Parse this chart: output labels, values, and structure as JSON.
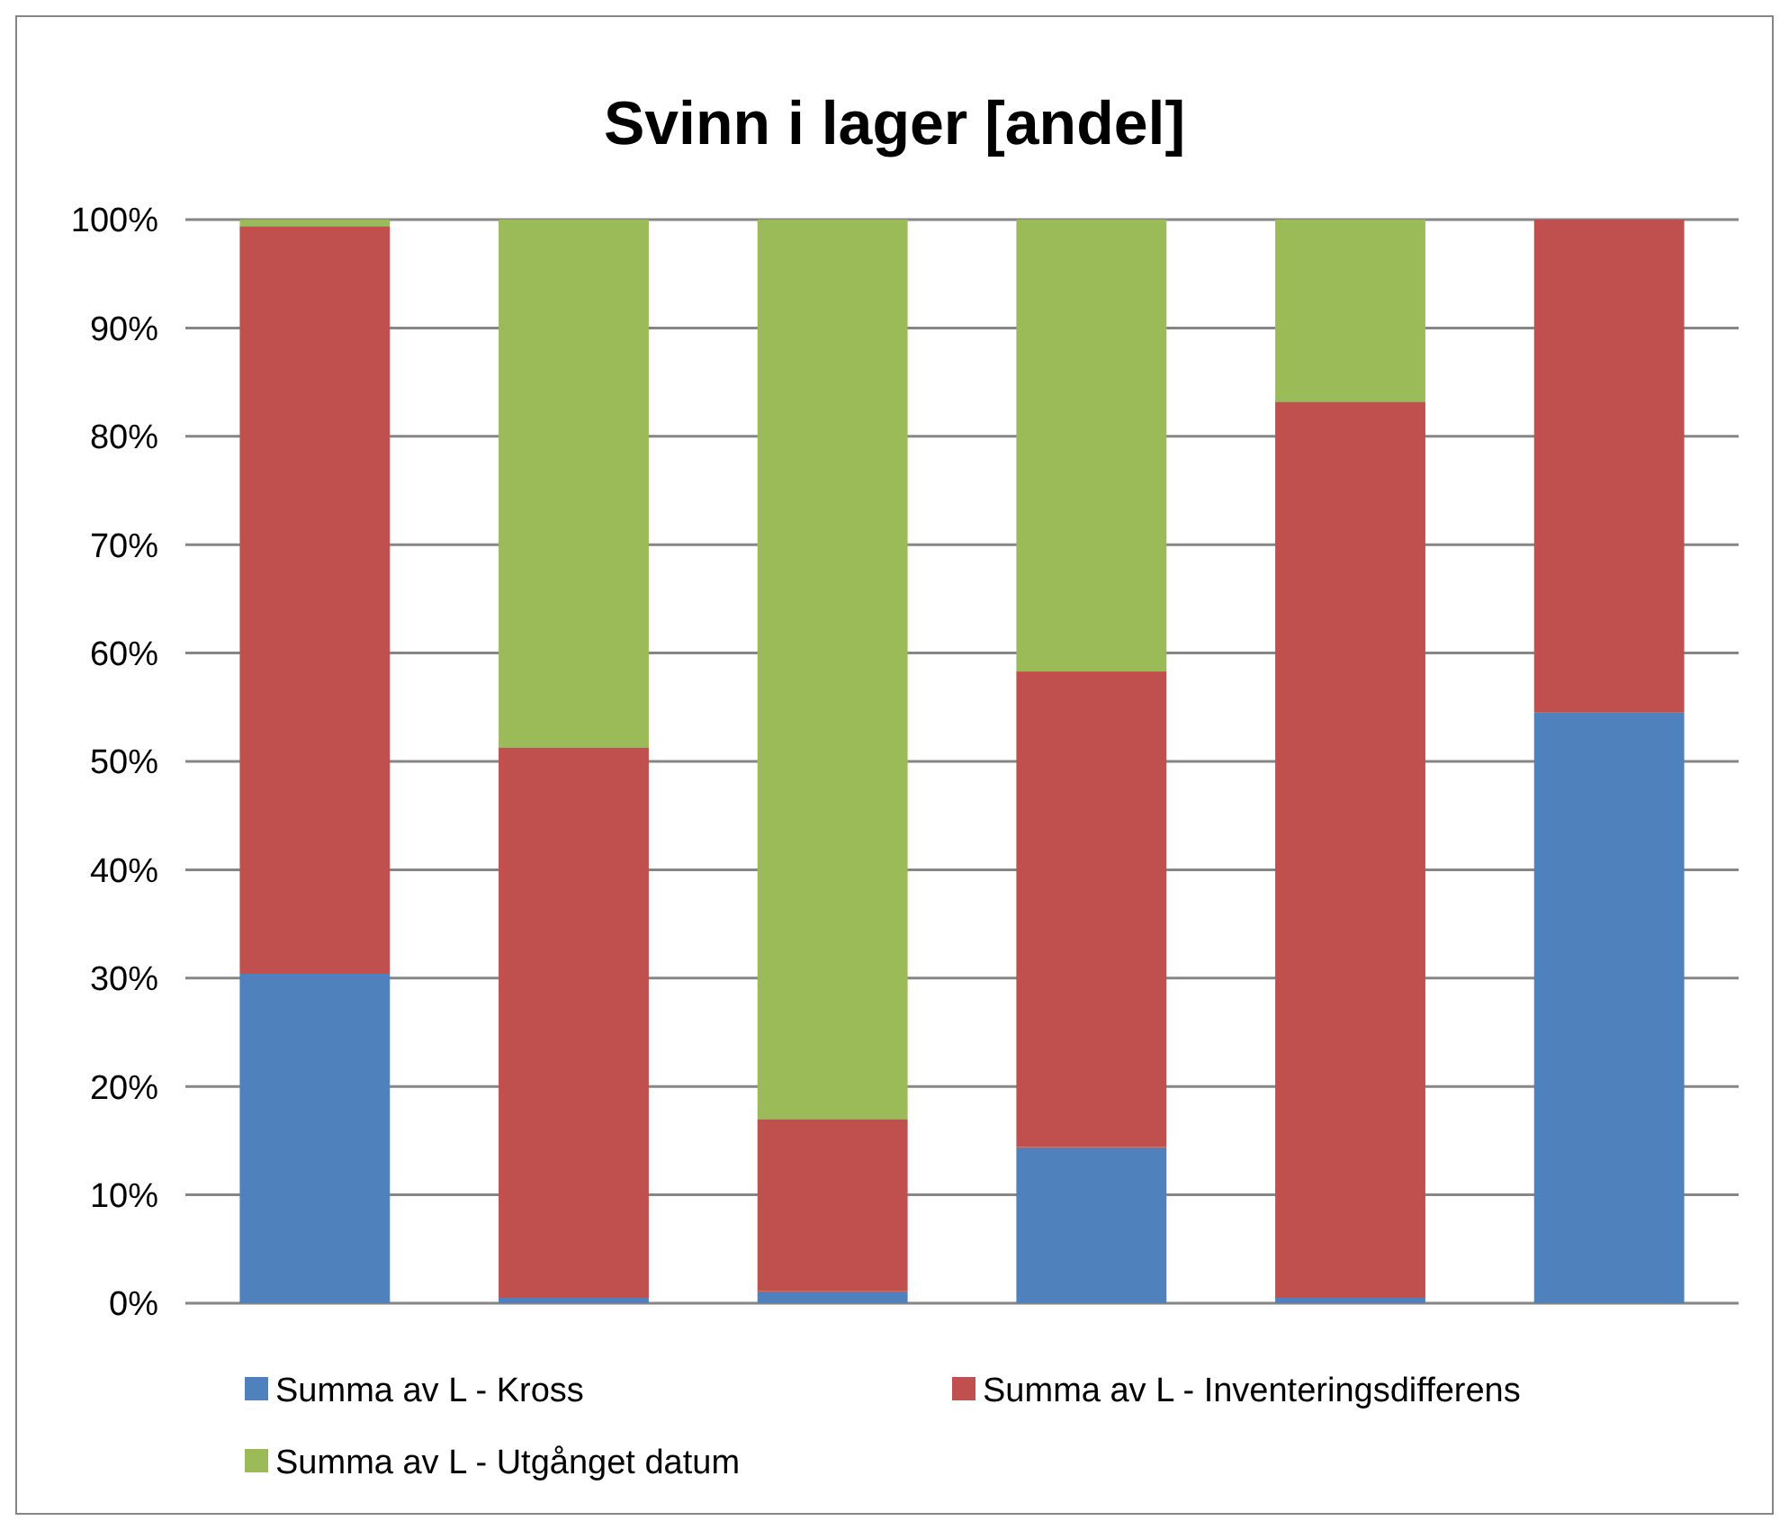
{
  "chart_data": {
    "type": "bar",
    "title": "Svinn i lager [andel]",
    "stacked": true,
    "categories": [
      null,
      null,
      null,
      null,
      null,
      null
    ],
    "series": [
      {
        "name": "Summa av L - Kross",
        "color": "#4f81bd",
        "values": [
          30.4,
          0.5,
          1.1,
          14.4,
          0.5,
          54.5
        ]
      },
      {
        "name": "Summa av L - Inventeringsdifferens",
        "color": "#c0504d",
        "values": [
          69.0,
          50.8,
          15.9,
          43.9,
          82.7,
          45.5
        ]
      },
      {
        "name": "Summa av L - Utgånget datum",
        "color": "#9bbb59",
        "values": [
          0.6,
          48.7,
          83.0,
          41.7,
          16.8,
          0
        ]
      }
    ],
    "ylim": [
      0,
      100
    ],
    "yticks": [
      {
        "value": 0,
        "label": "0%"
      },
      {
        "value": 10,
        "label": "10%"
      },
      {
        "value": 20,
        "label": "20%"
      },
      {
        "value": 30,
        "label": "30%"
      },
      {
        "value": 40,
        "label": "40%"
      },
      {
        "value": 50,
        "label": "50%"
      },
      {
        "value": 60,
        "label": "60%"
      },
      {
        "value": 70,
        "label": "70%"
      },
      {
        "value": 80,
        "label": "80%"
      },
      {
        "value": 90,
        "label": "90%"
      },
      {
        "value": 100,
        "label": "100%"
      }
    ],
    "grid": "y",
    "legend": "bottom"
  }
}
